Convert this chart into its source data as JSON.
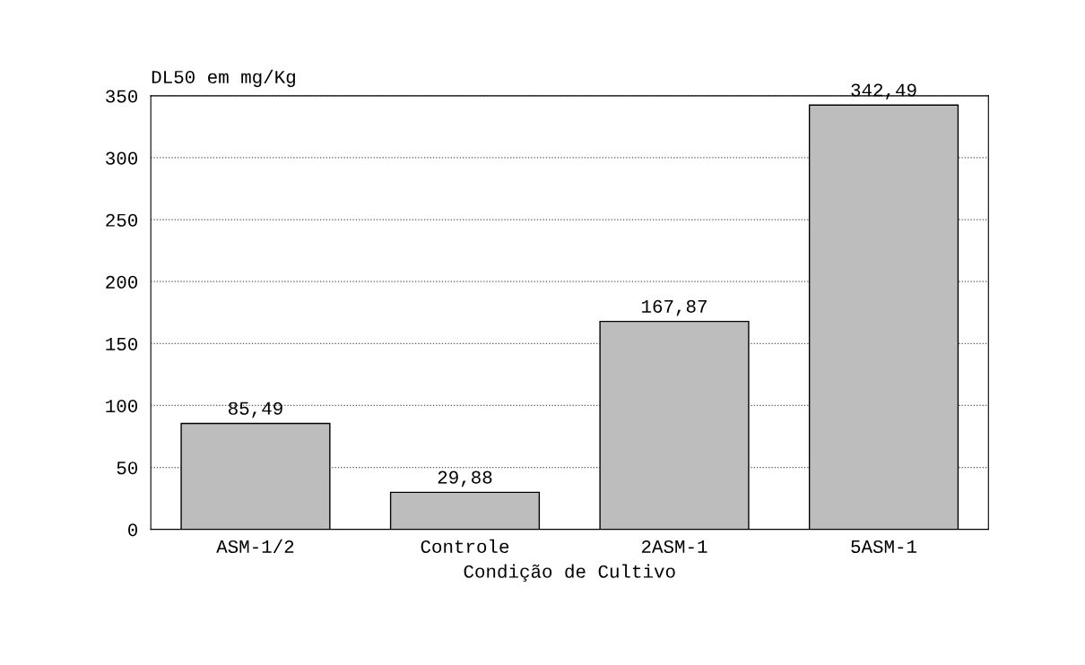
{
  "chart_data": {
    "type": "bar",
    "ylabel": "DL50 em mg/Kg",
    "xlabel": "Condição de Cultivo",
    "categories": [
      "ASM-1/2",
      "Controle",
      "2ASM-1",
      "5ASM-1"
    ],
    "values": [
      85.49,
      29.88,
      167.87,
      342.49
    ],
    "value_labels": [
      "85,49",
      "29,88",
      "167,87",
      "342,49"
    ],
    "color": "#bdbdbd",
    "ylim": [
      0,
      350
    ],
    "yticks": [
      0,
      50,
      100,
      150,
      200,
      250,
      300,
      350
    ],
    "grid": "y"
  }
}
